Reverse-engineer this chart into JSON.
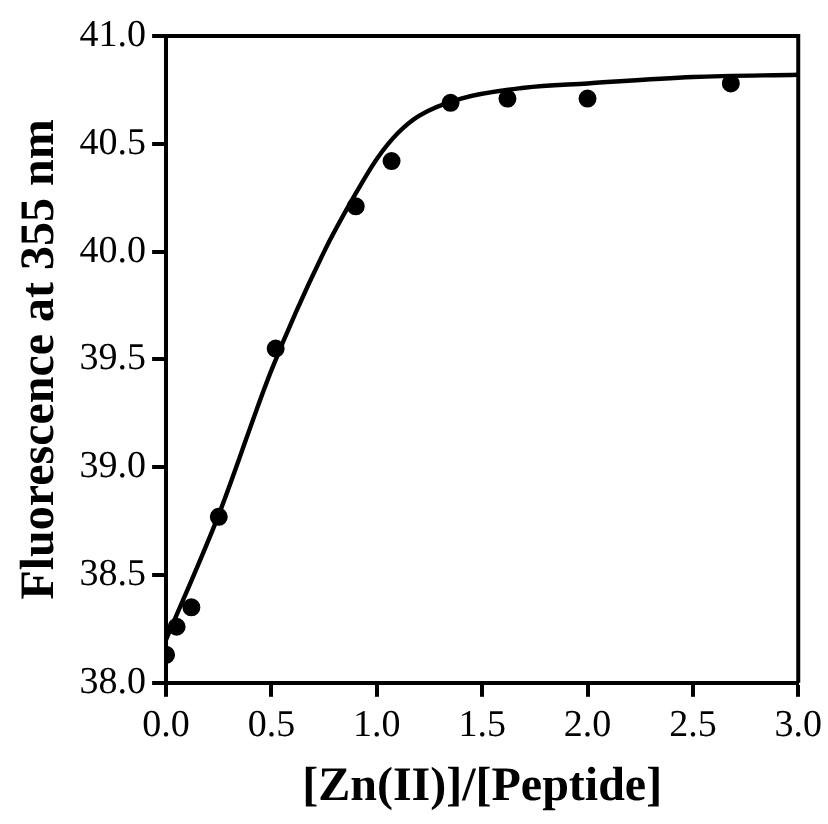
{
  "chart_data": {
    "type": "scatter",
    "xlabel": "[Zn(II)]/[Peptide]",
    "ylabel": "Fluorescence at 355 nm",
    "xlim": [
      0,
      3
    ],
    "xticks": [
      {
        "value": 0,
        "label": "0.0"
      },
      {
        "value": 0.5,
        "label": "0.5"
      },
      {
        "value": 1,
        "label": "1.0"
      },
      {
        "value": 1.5,
        "label": "1.5"
      },
      {
        "value": 2,
        "label": "2.0"
      },
      {
        "value": 2.5,
        "label": "2.5"
      },
      {
        "value": 3,
        "label": "3.0"
      }
    ],
    "ylim": [
      38,
      41
    ],
    "yticks": [
      {
        "value": 38,
        "label": "38.0"
      },
      {
        "value": 38.5,
        "label": "38.5"
      },
      {
        "value": 39,
        "label": "39.0"
      },
      {
        "value": 39.5,
        "label": "39.5"
      },
      {
        "value": 40,
        "label": "40.0"
      },
      {
        "value": 40.5,
        "label": "40.5"
      },
      {
        "value": 41,
        "label": "41.0"
      }
    ],
    "grid": false,
    "legend": false,
    "series": [
      {
        "marker": "circle",
        "color": "#000000",
        "x": [
          0,
          0.05,
          0.12,
          0.25,
          0.52,
          0.9,
          1.07,
          1.35,
          1.62,
          2.0,
          2.68
        ],
        "values": [
          38.13,
          38.26,
          38.35,
          38.77,
          39.55,
          40.21,
          40.42,
          40.69,
          40.71,
          40.71,
          40.78
        ]
      },
      {
        "type": "line",
        "marker": "none",
        "color": "#000000",
        "x": [
          0,
          0.25,
          0.5,
          0.75,
          0.9,
          1.0,
          1.1,
          1.2,
          1.4,
          1.7,
          2.0,
          2.5,
          3.0
        ],
        "values": [
          38.2,
          38.78,
          39.45,
          40.0,
          40.27,
          40.43,
          40.55,
          40.63,
          40.71,
          40.76,
          40.78,
          40.81,
          40.82
        ]
      }
    ]
  }
}
